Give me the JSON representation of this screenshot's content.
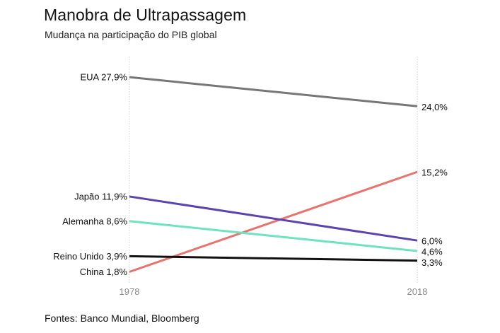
{
  "title": "Manobra de Ultrapassagem",
  "subtitle": "Mudança na participação do PIB global",
  "source": "Fontes: Banco Mundial, Bloomberg",
  "chart_data": {
    "type": "line",
    "x": [
      "1978",
      "2018"
    ],
    "series": [
      {
        "name": "EUA",
        "values": [
          27.9,
          24.0
        ],
        "start_label": "EUA 27,9%",
        "end_label": "24,0%",
        "color": "#777777"
      },
      {
        "name": "China",
        "values": [
          1.8,
          15.2
        ],
        "start_label": "China 1,8%",
        "end_label": "15,2%",
        "color": "#e8746f"
      },
      {
        "name": "Japão",
        "values": [
          11.9,
          6.0
        ],
        "start_label": "Japão 11,9%",
        "end_label": "6,0%",
        "color": "#5b43b0"
      },
      {
        "name": "Alemanha",
        "values": [
          8.6,
          4.6
        ],
        "start_label": "Alemanha 8,6%",
        "end_label": "4,6%",
        "color": "#6fe3c1"
      },
      {
        "name": "Reino Unido",
        "values": [
          3.9,
          3.3
        ],
        "start_label": "Reino Unido 3,9%",
        "end_label": "3,3%",
        "color": "#111111"
      }
    ],
    "grid": "vertical dotted lines at 1978 and 2018",
    "legend": "direct labels at line ends"
  }
}
